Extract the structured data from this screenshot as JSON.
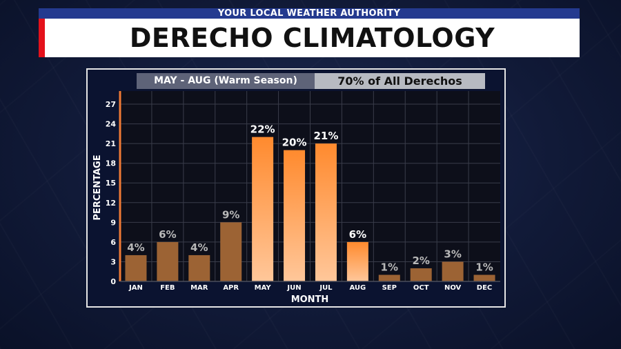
{
  "header": {
    "strip": "YOUR LOCAL WEATHER AUTHORITY",
    "title": "DERECHO CLIMATOLOGY"
  },
  "tags": {
    "left": "MAY - AUG (Warm Season)",
    "right": "70% of All Derechos"
  },
  "colors": {
    "title_accent": "#e4111b",
    "strip_blue": "#243a8f",
    "axis_orange": "#f07a35",
    "bar_dim": "#9c6334",
    "bar_bright_top": "#ff8a2e",
    "bar_bright_bottom": "#ffc79a",
    "label_dim": "#b8b8b8",
    "label_bright": "#ffffff"
  },
  "chart_data": {
    "type": "bar",
    "categories": [
      "JAN",
      "FEB",
      "MAR",
      "APR",
      "MAY",
      "JUN",
      "JUL",
      "AUG",
      "SEP",
      "OCT",
      "NOV",
      "DEC"
    ],
    "values": [
      4,
      6,
      4,
      9,
      22,
      20,
      21,
      6,
      1,
      2,
      3,
      1
    ],
    "data_labels": [
      "4%",
      "6%",
      "4%",
      "9%",
      "22%",
      "20%",
      "21%",
      "6%",
      "1%",
      "2%",
      "3%",
      "1%"
    ],
    "highlighted": [
      false,
      false,
      false,
      false,
      true,
      true,
      true,
      true,
      false,
      false,
      false,
      false
    ],
    "title": "",
    "xlabel": "MONTH",
    "ylabel": "PERCENTAGE",
    "ylim": [
      0,
      29
    ],
    "yticks": [
      0,
      3,
      6,
      9,
      12,
      15,
      18,
      21,
      24,
      27
    ],
    "grid": true
  }
}
